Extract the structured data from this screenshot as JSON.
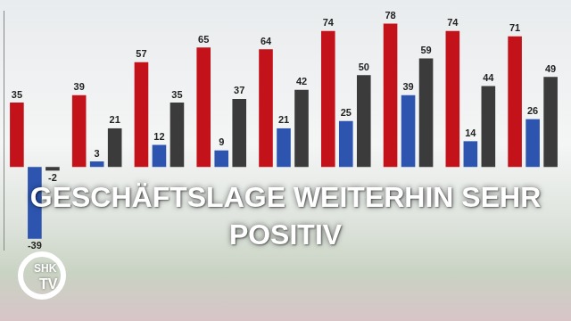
{
  "chart_data": {
    "type": "bar",
    "title": "GESCHÄFTSLAGE WEITERHIN SEHR POSITIV",
    "categories": [
      null,
      null,
      null,
      null,
      null,
      null,
      null,
      null,
      null
    ],
    "series": [
      {
        "color": "#c4121b",
        "values": [
          35,
          39,
          57,
          65,
          64,
          74,
          78,
          74,
          71
        ]
      },
      {
        "color": "#2d55b0",
        "values": [
          -39,
          3,
          12,
          9,
          21,
          25,
          39,
          14,
          26
        ]
      },
      {
        "color": "#3b3b3b",
        "values": [
          -2,
          21,
          35,
          37,
          42,
          50,
          59,
          44,
          49
        ]
      }
    ],
    "ylim": [
      -45,
      85
    ],
    "grid": false,
    "tick_labels": false,
    "data_labels": true
  },
  "logo": [
    "SHK",
    "TV"
  ]
}
